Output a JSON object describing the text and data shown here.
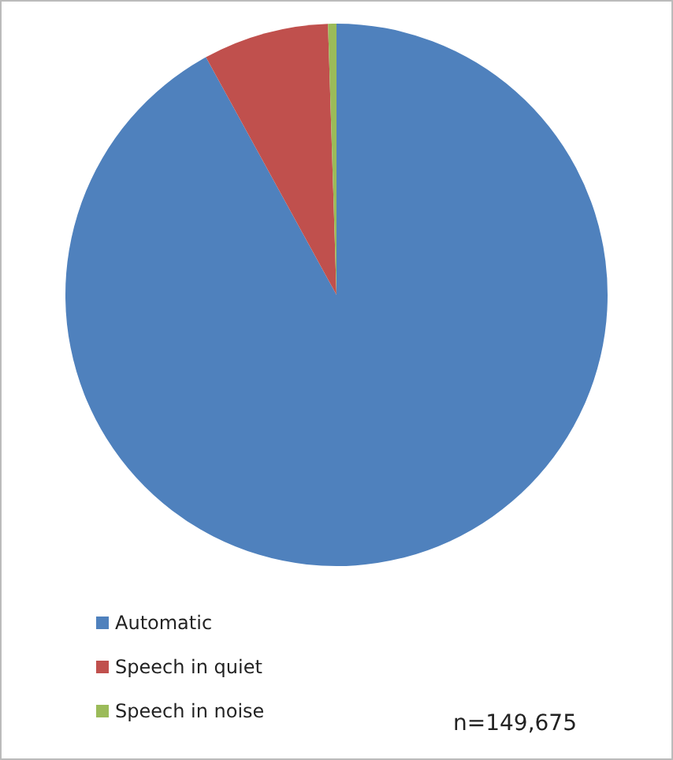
{
  "chart_data": {
    "type": "pie",
    "categories": [
      "Automatic",
      "Speech in quiet",
      "Speech in noise"
    ],
    "values": [
      92,
      7.5,
      0.5
    ],
    "colors": [
      "#4f81bd",
      "#c0504d",
      "#9bbb59"
    ],
    "legend": "bottom left",
    "annotations": [
      "n=149,675"
    ]
  }
}
